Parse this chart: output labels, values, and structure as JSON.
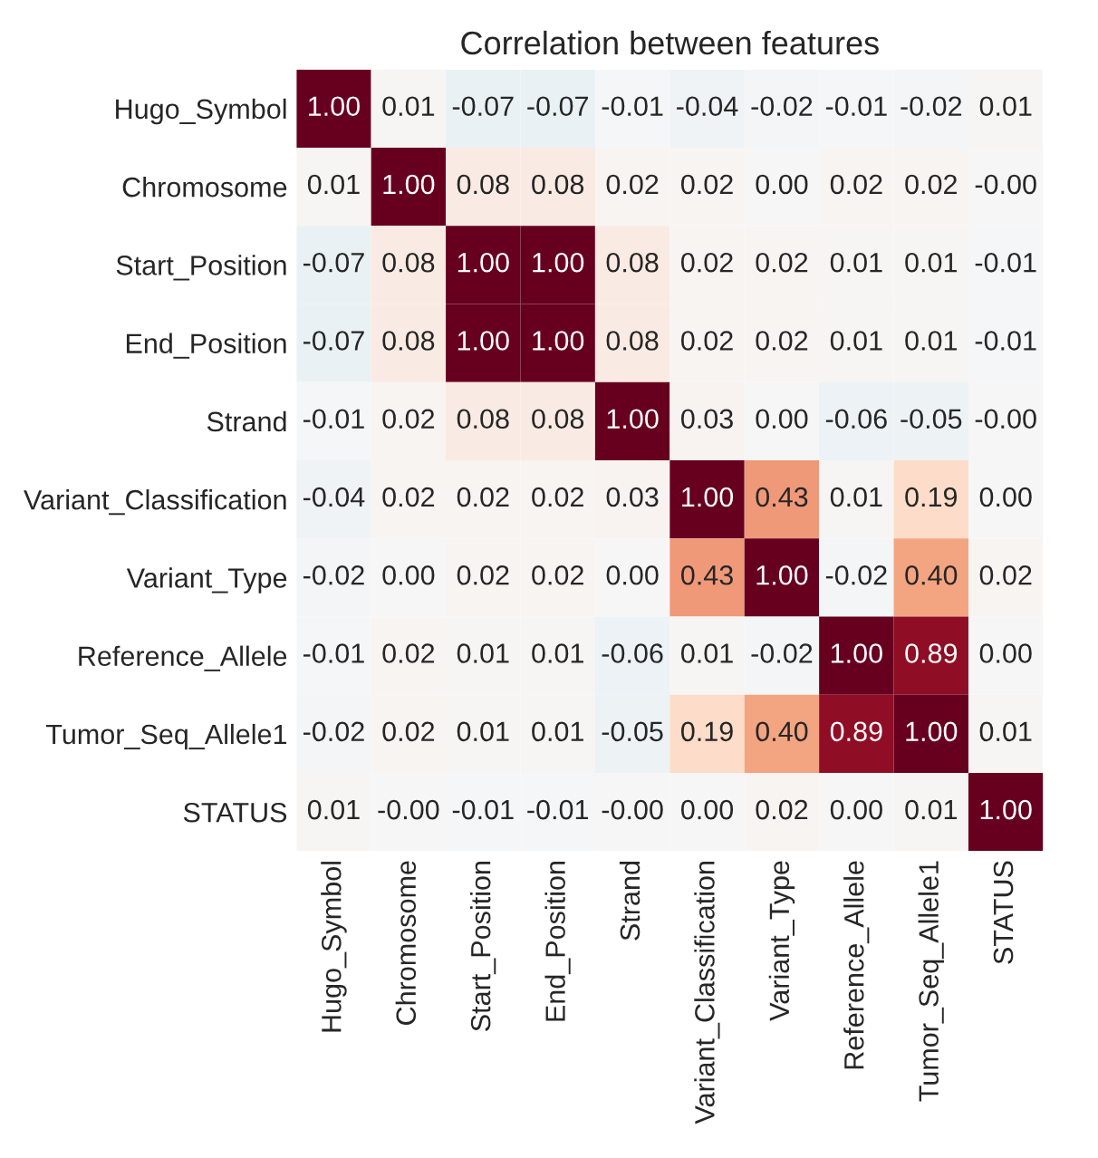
{
  "chart_data": {
    "type": "heatmap",
    "title": "Correlation between features",
    "categories": [
      "Hugo_Symbol",
      "Chromosome",
      "Start_Position",
      "End_Position",
      "Strand",
      "Variant_Classification",
      "Variant_Type",
      "Reference_Allele",
      "Tumor_Seq_Allele1",
      "STATUS"
    ],
    "y_categories": [
      "Hugo_Symbol",
      "Chromosome",
      "Start_Position",
      "End_Position",
      "Strand",
      "Variant_Classification",
      "Variant_Type",
      "Reference_Allele",
      "Tumor_Seq_Allele1",
      "STATUS"
    ],
    "cells": [
      [
        1.0,
        0.01,
        -0.07,
        -0.07,
        -0.01,
        -0.04,
        -0.02,
        -0.01,
        -0.02,
        0.01
      ],
      [
        0.01,
        1.0,
        0.08,
        0.08,
        0.02,
        0.02,
        0.0,
        0.02,
        0.02,
        -0.0
      ],
      [
        -0.07,
        0.08,
        1.0,
        1.0,
        0.08,
        0.02,
        0.02,
        0.01,
        0.01,
        -0.01
      ],
      [
        -0.07,
        0.08,
        1.0,
        1.0,
        0.08,
        0.02,
        0.02,
        0.01,
        0.01,
        -0.01
      ],
      [
        -0.01,
        0.02,
        0.08,
        0.08,
        1.0,
        0.03,
        0.0,
        -0.06,
        -0.05,
        -0.0
      ],
      [
        -0.04,
        0.02,
        0.02,
        0.02,
        0.03,
        1.0,
        0.43,
        0.01,
        0.19,
        0.0
      ],
      [
        -0.02,
        0.0,
        0.02,
        0.02,
        0.0,
        0.43,
        1.0,
        -0.02,
        0.4,
        0.02
      ],
      [
        -0.01,
        0.02,
        0.01,
        0.01,
        -0.06,
        0.01,
        -0.02,
        1.0,
        0.89,
        0.0
      ],
      [
        -0.02,
        0.02,
        0.01,
        0.01,
        -0.05,
        0.19,
        0.4,
        0.89,
        1.0,
        0.01
      ],
      [
        0.01,
        -0.0,
        -0.01,
        -0.01,
        -0.0,
        0.0,
        0.02,
        0.0,
        0.01,
        1.0
      ]
    ],
    "cell_labels": [
      [
        "1.00",
        "0.01",
        "-0.07",
        "-0.07",
        "-0.01",
        "-0.04",
        "-0.02",
        "-0.01",
        "-0.02",
        "0.01"
      ],
      [
        "0.01",
        "1.00",
        "0.08",
        "0.08",
        "0.02",
        "0.02",
        "0.00",
        "0.02",
        "0.02",
        "-0.00"
      ],
      [
        "-0.07",
        "0.08",
        "1.00",
        "1.00",
        "0.08",
        "0.02",
        "0.02",
        "0.01",
        "0.01",
        "-0.01"
      ],
      [
        "-0.07",
        "0.08",
        "1.00",
        "1.00",
        "0.08",
        "0.02",
        "0.02",
        "0.01",
        "0.01",
        "-0.01"
      ],
      [
        "-0.01",
        "0.02",
        "0.08",
        "0.08",
        "1.00",
        "0.03",
        "0.00",
        "-0.06",
        "-0.05",
        "-0.00"
      ],
      [
        "-0.04",
        "0.02",
        "0.02",
        "0.02",
        "0.03",
        "1.00",
        "0.43",
        "0.01",
        "0.19",
        "0.00"
      ],
      [
        "-0.02",
        "0.00",
        "0.02",
        "0.02",
        "0.00",
        "0.43",
        "1.00",
        "-0.02",
        "0.40",
        "0.02"
      ],
      [
        "-0.01",
        "0.02",
        "0.01",
        "0.01",
        "-0.06",
        "0.01",
        "-0.02",
        "1.00",
        "0.89",
        "0.00"
      ],
      [
        "-0.02",
        "0.02",
        "0.01",
        "0.01",
        "-0.05",
        "0.19",
        "0.40",
        "0.89",
        "1.00",
        "0.01"
      ],
      [
        "0.01",
        "-0.00",
        "-0.01",
        "-0.01",
        "-0.00",
        "0.00",
        "0.02",
        "0.00",
        "0.01",
        "1.00"
      ]
    ]
  }
}
